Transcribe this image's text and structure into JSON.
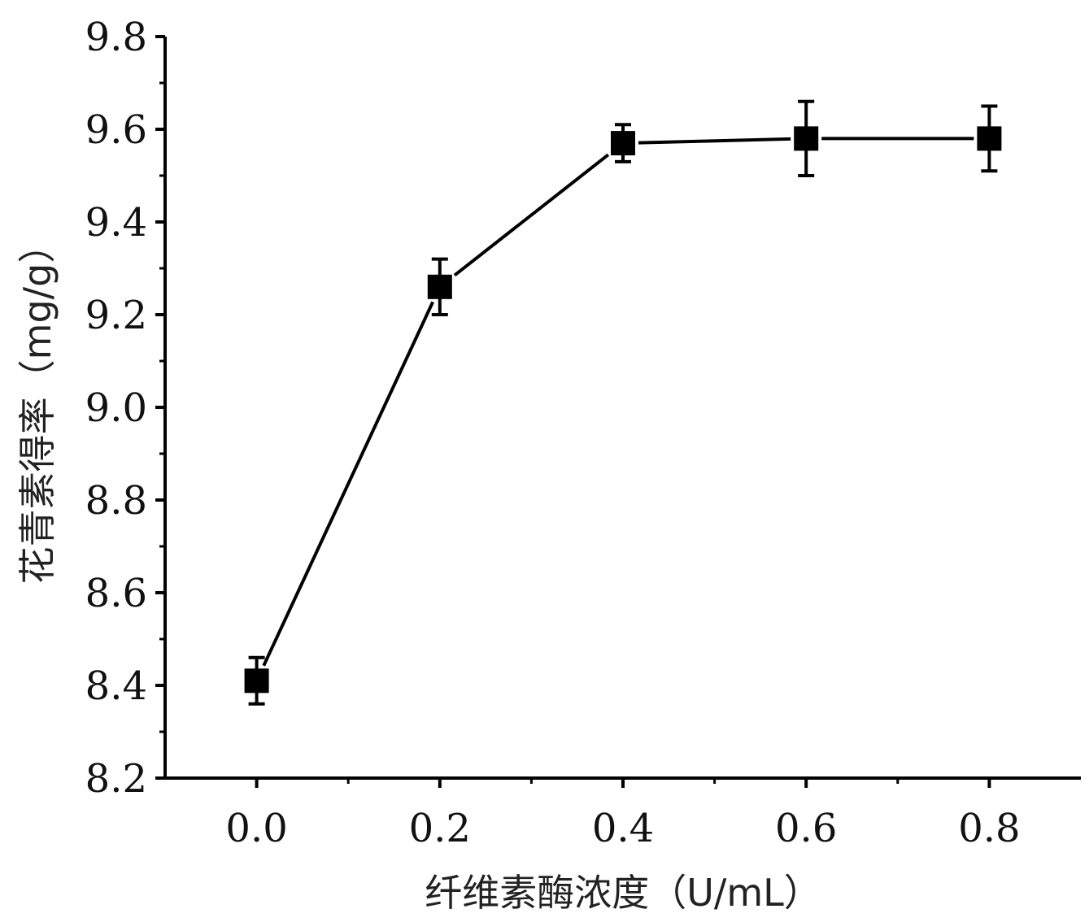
{
  "chart_data": {
    "type": "line",
    "xlabel": "纤维素酶浓度（U/mL）",
    "ylabel": "花青素得率（mg/g）",
    "x": [
      0.0,
      0.2,
      0.4,
      0.6,
      0.8
    ],
    "series": [
      {
        "values": [
          8.41,
          9.26,
          9.57,
          9.58,
          9.58
        ],
        "error": [
          0.05,
          0.06,
          0.04,
          0.08,
          0.07
        ],
        "marker": "square",
        "color": "#000000"
      }
    ],
    "xlim": [
      -0.1,
      0.9
    ],
    "ylim": [
      8.2,
      9.8
    ],
    "xticks": [
      "0.0",
      "0.2",
      "0.4",
      "0.6",
      "0.8"
    ],
    "yticks": [
      "8.2",
      "8.4",
      "8.6",
      "8.8",
      "9.0",
      "9.2",
      "9.4",
      "9.6",
      "9.8"
    ],
    "grid": false,
    "legend": "none"
  }
}
